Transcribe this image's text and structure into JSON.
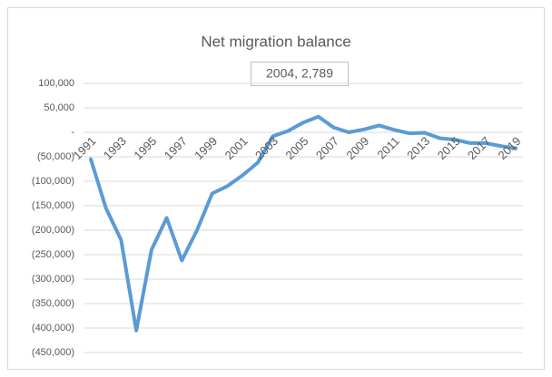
{
  "chart_data": {
    "type": "line",
    "title": "Net migration balance",
    "annotation": "2004, 2,789",
    "categories": [
      "1991",
      null,
      "1993",
      null,
      "1995",
      null,
      "1997",
      null,
      "1999",
      null,
      "2001",
      null,
      "2003",
      null,
      "2005",
      null,
      "2007",
      null,
      "2009",
      null,
      "2011",
      null,
      "2013",
      null,
      "2015",
      null,
      "2017",
      null,
      "2019"
    ],
    "series": [
      {
        "name": "Net migration balance",
        "color": "#5b9bd5",
        "values": [
          -55000,
          -155000,
          -220000,
          -405000,
          -240000,
          -175000,
          -262000,
          -200000,
          -125000,
          -110000,
          -88000,
          -62000,
          -8000,
          2789,
          20000,
          32000,
          10000,
          0,
          6000,
          14000,
          5000,
          -2000,
          -1000,
          -12000,
          -15000,
          -22000,
          -22000,
          -28000,
          -33000
        ]
      }
    ],
    "ylim": [
      -450000,
      100000
    ],
    "yticks": [
      {
        "value": -450000,
        "label": "(450,000)"
      },
      {
        "value": -400000,
        "label": "(400,000)"
      },
      {
        "value": -350000,
        "label": "(350,000)"
      },
      {
        "value": -300000,
        "label": "(300,000)"
      },
      {
        "value": -250000,
        "label": "(250,000)"
      },
      {
        "value": -200000,
        "label": "(200,000)"
      },
      {
        "value": -150000,
        "label": "(150,000)"
      },
      {
        "value": -100000,
        "label": "(100,000)"
      },
      {
        "value": -50000,
        "label": "(50,000)"
      },
      {
        "value": 0,
        "label": "-"
      },
      {
        "value": 50000,
        "label": "50,000"
      },
      {
        "value": 100000,
        "label": "100,000"
      }
    ],
    "grid": true
  }
}
